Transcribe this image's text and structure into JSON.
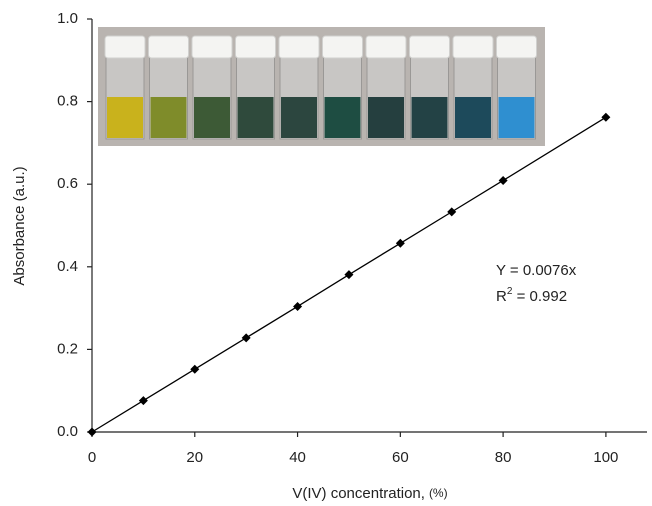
{
  "chart_data": {
    "type": "line",
    "markers": true,
    "x": [
      0,
      10,
      20,
      30,
      40,
      50,
      60,
      70,
      80,
      100
    ],
    "series": [
      {
        "color": "#000000",
        "values": [
          0,
          0.076,
          0.152,
          0.228,
          0.304,
          0.381,
          0.457,
          0.533,
          0.609,
          0.762
        ]
      }
    ],
    "xlim": [
      0,
      108
    ],
    "xticks": [
      0,
      20,
      40,
      60,
      80,
      100
    ],
    "ylim": [
      0,
      1.0
    ],
    "yticks": [
      {
        "value": 0,
        "label": "0.0"
      },
      0.2,
      0.4,
      0.6,
      0.8,
      {
        "value": 1.0,
        "label": "1.0"
      }
    ],
    "xlabel": "V(IV) concentration,",
    "xlabel_unit": "(%)",
    "ylabel": "Absorbance (a.u.)",
    "equation": "Y = 0.0076x",
    "r_squared": {
      "base": "R",
      "sup": "2",
      "rest": " = 0.992"
    }
  }
}
